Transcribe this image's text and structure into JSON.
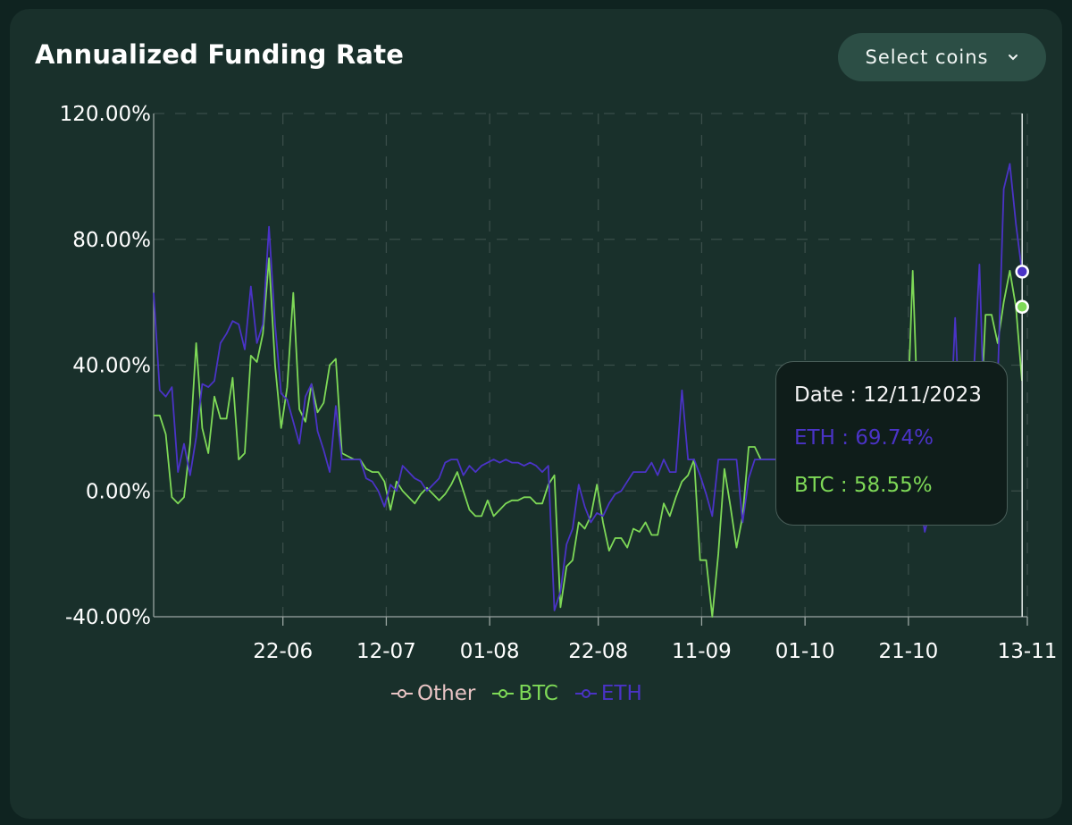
{
  "header": {
    "title": "Annualized Funding Rate",
    "select_label": "Select coins",
    "select_icon": "chevron-down-icon"
  },
  "tooltip": {
    "date": "Date : 12/11/2023",
    "eth": "ETH : 69.74%",
    "btc": "BTC : 58.55%"
  },
  "legend": [
    {
      "name": "Other",
      "color": "#e8c4c4"
    },
    {
      "name": "BTC",
      "color": "#7ed957"
    },
    {
      "name": "ETH",
      "color": "#4a33c6"
    }
  ],
  "chart_data": {
    "type": "line",
    "title": "Annualized Funding Rate",
    "xlabel": "",
    "ylabel": "",
    "x_ticks": [
      "22-06",
      "12-07",
      "01-08",
      "22-08",
      "11-09",
      "01-10",
      "21-10",
      "13-11"
    ],
    "y_ticks": [
      "120.00%",
      "80.00%",
      "40.00%",
      "0.00%",
      "-40.00%"
    ],
    "ylim": [
      -40,
      120
    ],
    "x_range_days": [
      "2023-05-28",
      "2023-11-13"
    ],
    "grid": "dashed",
    "legend_position": "bottom-center",
    "hover_date": "2023-11-12",
    "series": [
      {
        "name": "BTC",
        "color": "#7ed957",
        "values": [
          24,
          24,
          18,
          -2,
          -4,
          -2,
          15,
          47,
          20,
          12,
          30,
          23,
          23,
          36,
          10,
          12,
          43,
          41,
          50,
          74,
          40,
          20,
          33,
          63,
          26,
          22,
          34,
          25,
          28,
          40,
          42,
          12,
          11,
          10,
          10,
          7,
          6,
          6,
          3,
          -6,
          3,
          0,
          -2,
          -4,
          -1,
          1,
          -1,
          -3,
          -1,
          2,
          6,
          0,
          -6,
          -8,
          -8,
          -3,
          -8,
          -6,
          -4,
          -3,
          -3,
          -2,
          -2,
          -4,
          -4,
          2,
          5,
          -37,
          -24,
          -22,
          -10,
          -12,
          -8,
          2,
          -10,
          -19,
          -15,
          -15,
          -18,
          -12,
          -13,
          -10,
          -14,
          -14,
          -4,
          -8,
          -2,
          3,
          5,
          10,
          -22,
          -22,
          -40,
          -20,
          7,
          -5,
          -18,
          -8,
          14,
          14,
          10,
          10,
          10,
          10,
          10,
          10,
          6,
          0,
          4,
          10,
          10,
          8,
          -7,
          -5,
          -3,
          0,
          4,
          6,
          5,
          8,
          7,
          6,
          8,
          3,
          16,
          70,
          16,
          -5,
          -7,
          15,
          20,
          20,
          26,
          36,
          10,
          10,
          14,
          56,
          56,
          47,
          60,
          70,
          58.55,
          35
        ]
      },
      {
        "name": "ETH",
        "color": "#4a33c6",
        "values": [
          63,
          32,
          30,
          33,
          6,
          15,
          5,
          17,
          34,
          33,
          35,
          47,
          50,
          54,
          53,
          45,
          65,
          47,
          53,
          84,
          53,
          31,
          29,
          22,
          15,
          30,
          34,
          19,
          13,
          6,
          27,
          10,
          10,
          10,
          10,
          4,
          3,
          0,
          -5,
          2,
          0,
          8,
          6,
          4,
          3,
          0,
          2,
          4,
          9,
          10,
          10,
          5,
          8,
          6,
          8,
          9,
          10,
          9,
          10,
          9,
          9,
          8,
          9,
          8,
          6,
          8,
          -38,
          -32,
          -17,
          -12,
          2,
          -5,
          -10,
          -7,
          -8,
          -4,
          -1,
          0,
          3,
          6,
          6,
          6,
          9,
          5,
          10,
          6,
          6,
          32,
          10,
          10,
          5,
          -1,
          -8,
          10,
          10,
          10,
          10,
          -10,
          4,
          10,
          10,
          10,
          10,
          10,
          10,
          10,
          10,
          10,
          8,
          5,
          10,
          5,
          0,
          -7,
          0,
          10,
          10,
          10,
          10,
          10,
          10,
          10,
          10,
          10,
          10,
          10,
          0,
          -13,
          -5,
          3,
          10,
          10,
          55,
          10,
          20,
          35,
          72,
          10,
          0,
          35,
          96,
          104,
          85,
          69.74
        ]
      },
      {
        "name": "Other",
        "color": "#e8c4c4",
        "values": []
      }
    ]
  }
}
